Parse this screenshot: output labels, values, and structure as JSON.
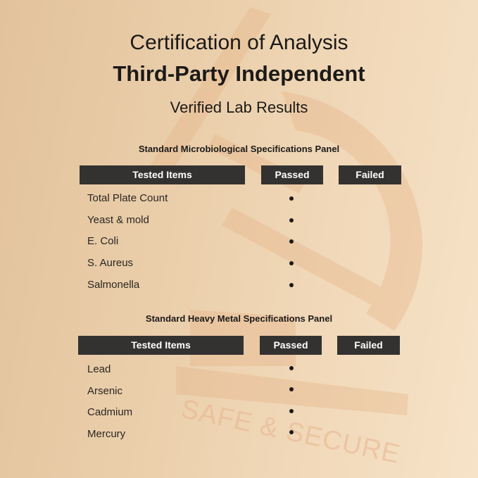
{
  "header": {
    "line1": "Certification of Analysis",
    "line2": "Third-Party Independent",
    "line3": "Verified Lab Results"
  },
  "watermark": {
    "text": "SAFE & SECURE",
    "icon": "microscope-icon",
    "color": "#e8b48c"
  },
  "columns": [
    "Tested Items",
    "Passed",
    "Failed"
  ],
  "panels": [
    {
      "title": "Standard Microbiological Specifications Panel",
      "rows": [
        {
          "item": "Total Plate Count",
          "result": "passed"
        },
        {
          "item": "Yeast & mold",
          "result": "passed"
        },
        {
          "item": "E. Coli",
          "result": "passed"
        },
        {
          "item": "S. Aureus",
          "result": "passed"
        },
        {
          "item": "Salmonella",
          "result": "passed"
        }
      ]
    },
    {
      "title": "Standard Heavy Metal Specifications Panel",
      "rows": [
        {
          "item": "Lead",
          "result": "passed"
        },
        {
          "item": "Arsenic",
          "result": "passed"
        },
        {
          "item": "Cadmium",
          "result": "passed"
        },
        {
          "item": "Mercury",
          "result": "passed"
        }
      ]
    }
  ],
  "colors": {
    "header_bg": "#343231",
    "text": "#1c1a18"
  }
}
